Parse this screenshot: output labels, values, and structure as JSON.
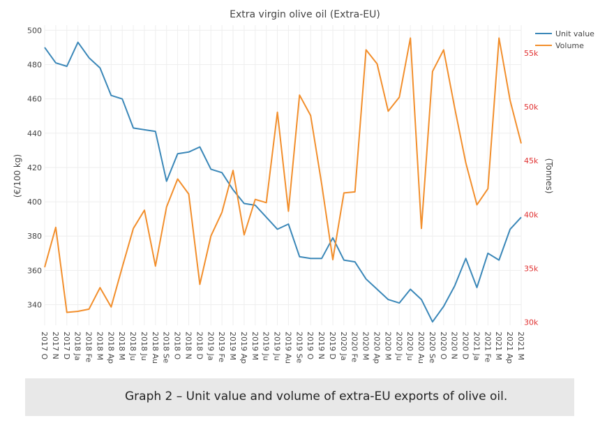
{
  "chart_data": {
    "type": "line",
    "title": "Extra virgin olive oil (Extra-EU)",
    "ylabel": "(€/100 kg)",
    "y2label": "(Tonnes)",
    "ylim": [
      328,
      503
    ],
    "y2lim": [
      29700,
      57600
    ],
    "yticks": [
      "340",
      "360",
      "380",
      "400",
      "420",
      "440",
      "460",
      "480",
      "500"
    ],
    "y2ticks": [
      "30k",
      "35k",
      "40k",
      "45k",
      "50k",
      "55k"
    ],
    "grid": true,
    "legend_position": "top-right",
    "x": [
      "2017 O",
      "2017 N",
      "2017 D",
      "2018 Ja",
      "2018 Fe",
      "2018 M",
      "2018 Ap",
      "2018 M",
      "2018 Ju",
      "2018 Ju",
      "2018 Au",
      "2018 Se",
      "2018 O",
      "2018 N",
      "2018 D",
      "2019 Ja",
      "2019 Fe",
      "2019 M",
      "2019 Ap",
      "2019 M",
      "2019 Ju",
      "2019 Ju",
      "2019 Au",
      "2019 Se",
      "2019 O",
      "2019 N",
      "2019 D",
      "2020 Ja",
      "2020 Fe",
      "2020 M",
      "2020 Ap",
      "2020 M",
      "2020 Ju",
      "2020 Ju",
      "2020 Au",
      "2020 Se",
      "2020 O",
      "2020 N",
      "2020 D",
      "2021 Ja",
      "2021 Fe",
      "2021 M",
      "2021 Ap",
      "2021 M"
    ],
    "series": [
      {
        "name": "Unit value",
        "axis": "left",
        "color": "#3a87b8",
        "values": [
          490,
          481,
          479,
          493,
          484,
          478,
          462,
          460,
          443,
          442,
          441,
          412,
          428,
          429,
          432,
          419,
          417,
          407,
          399,
          398,
          391,
          384,
          387,
          368,
          367,
          367,
          379,
          366,
          365,
          355,
          349,
          343,
          341,
          349,
          343,
          330,
          339,
          351,
          367,
          350,
          370,
          366,
          384,
          391
        ]
      },
      {
        "name": "Volume",
        "axis": "right",
        "color": "#f28e2b",
        "values": [
          35100,
          38800,
          30900,
          31000,
          31200,
          33200,
          31400,
          35100,
          38700,
          40400,
          35200,
          40700,
          43300,
          41900,
          33500,
          38000,
          40200,
          44100,
          38100,
          41400,
          41100,
          49500,
          40300,
          51100,
          49200,
          42800,
          35800,
          42000,
          42100,
          55300,
          54000,
          49600,
          50900,
          56400,
          38700,
          53300,
          55300,
          49900,
          44800,
          40900,
          42400,
          56400,
          50600,
          46600
        ]
      }
    ]
  },
  "caption": "Graph 2 – Unit value and volume of extra-EU exports of olive oil."
}
